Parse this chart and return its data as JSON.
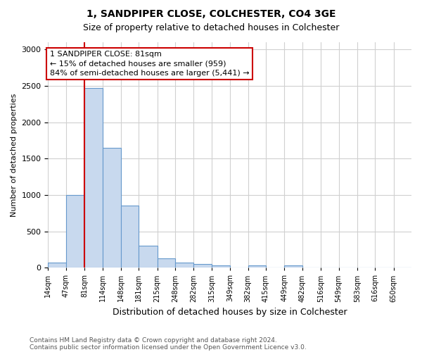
{
  "title1": "1, SANDPIPER CLOSE, COLCHESTER, CO4 3GE",
  "title2": "Size of property relative to detached houses in Colchester",
  "xlabel": "Distribution of detached houses by size in Colchester",
  "ylabel": "Number of detached properties",
  "footnote1": "Contains HM Land Registry data © Crown copyright and database right 2024.",
  "footnote2": "Contains public sector information licensed under the Open Government Licence v3.0.",
  "annotation_text": "1 SANDPIPER CLOSE: 81sqm\n← 15% of detached houses are smaller (959)\n84% of semi-detached houses are larger (5,441) →",
  "property_size_x": 81,
  "bar_edges": [
    14,
    47,
    81,
    114,
    148,
    181,
    215,
    248,
    282,
    315,
    349,
    382,
    415,
    449,
    482,
    516,
    549,
    583,
    616,
    650,
    683
  ],
  "bar_heights": [
    75,
    1000,
    2475,
    1650,
    850,
    300,
    130,
    75,
    55,
    30,
    0,
    30,
    0,
    30,
    0,
    0,
    0,
    0,
    0,
    0
  ],
  "bar_color": "#c8d9ee",
  "bar_edge_color": "#6699cc",
  "red_line_color": "#cc0000",
  "annotation_box_color": "#cc0000",
  "ylim": [
    0,
    3100
  ],
  "yticks": [
    0,
    500,
    1000,
    1500,
    2000,
    2500,
    3000
  ],
  "xlim_left": 14,
  "xlim_right": 683,
  "bg_color": "#ffffff",
  "grid_color": "#d0d0d0",
  "title1_fontsize": 10,
  "title2_fontsize": 9,
  "ylabel_fontsize": 8,
  "xlabel_fontsize": 9,
  "tick_fontsize": 8,
  "xtick_fontsize": 7,
  "footnote_fontsize": 6.5,
  "annotation_fontsize": 8
}
